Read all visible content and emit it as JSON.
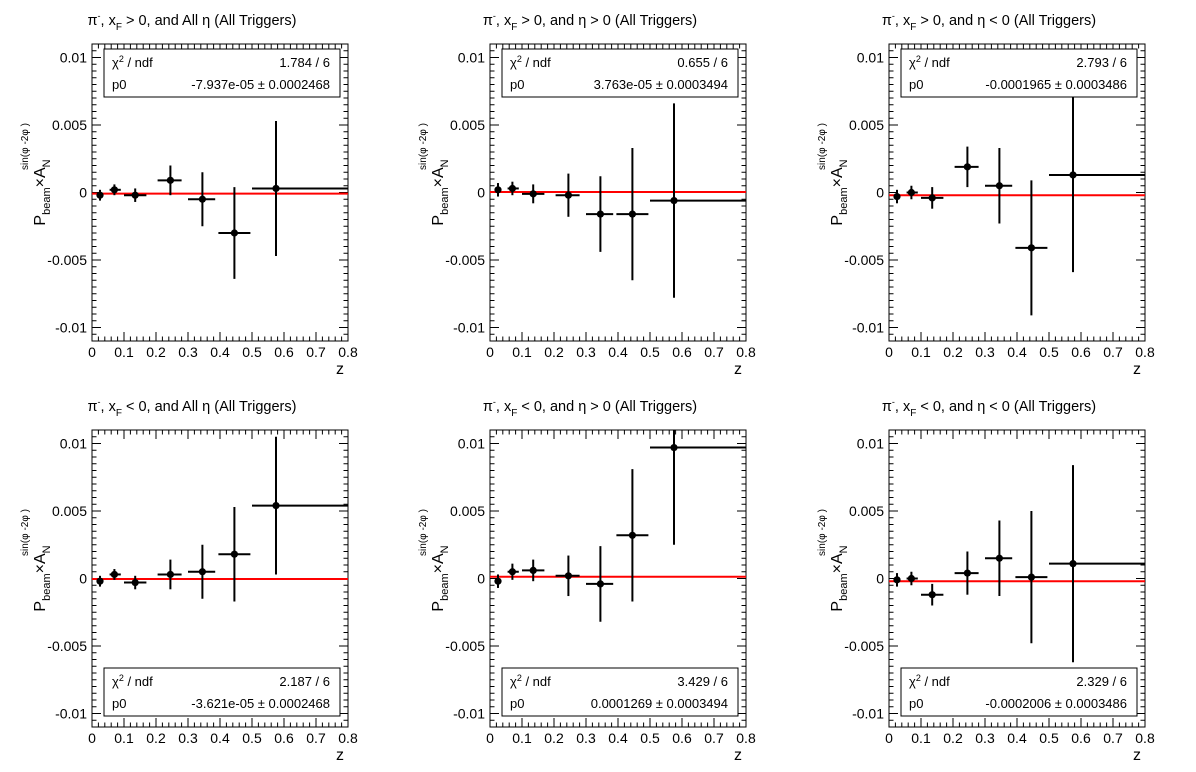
{
  "chart_data": [
    {
      "type": "scatter",
      "title_particle": "π",
      "title_charge": "-",
      "title_xf_sub": "F",
      "title_text": "> 0, and All η (All Triggers)",
      "ylabel_main": "P",
      "ylabel_sub": "beam",
      "ylabel_A": "A",
      "ylabel_Asub": "N",
      "ylabel_sup": "sin(φ  -2φ )",
      "ylabel_sup_s": "S",
      "ylabel_sup_h": "h",
      "xlabel": "z",
      "xlim": [
        0,
        0.8
      ],
      "ylim": [
        -0.011,
        0.011
      ],
      "xticks": [
        "0",
        "0.1",
        "0.2",
        "0.3",
        "0.4",
        "0.5",
        "0.6",
        "0.7",
        "0.8"
      ],
      "yticks": [
        "0.01",
        "0.005",
        "0",
        "-0.005",
        "-0.01"
      ],
      "legend_position": "top",
      "stats": {
        "chi2_label": "χ",
        "chi2_sup": "2",
        "chi2_rest": " / ndf",
        "chi2_value": "1.784 / 6",
        "p0_label": "p0",
        "p0_value": "-7.937e-05 ± 0.0002468"
      },
      "fit_value": -8e-05,
      "points": [
        {
          "x": 0.025,
          "y": -0.0002,
          "xlo": 0.015,
          "xhi": 0.035,
          "yerr": 0.0004
        },
        {
          "x": 0.07,
          "y": 0.0002,
          "xlo": 0.055,
          "xhi": 0.09,
          "yerr": 0.0004
        },
        {
          "x": 0.135,
          "y": -0.0002,
          "xlo": 0.1,
          "xhi": 0.17,
          "yerr": 0.0005
        },
        {
          "x": 0.245,
          "y": 0.0009,
          "xlo": 0.205,
          "xhi": 0.28,
          "yerr": 0.0011
        },
        {
          "x": 0.345,
          "y": -0.0005,
          "xlo": 0.3,
          "xhi": 0.385,
          "yerr": 0.002
        },
        {
          "x": 0.445,
          "y": -0.003,
          "xlo": 0.395,
          "xhi": 0.495,
          "yerr": 0.0034
        },
        {
          "x": 0.575,
          "y": 0.0003,
          "xlo": 0.5,
          "xhi": 0.8,
          "yerr": 0.005
        }
      ]
    },
    {
      "type": "scatter",
      "title_particle": "π",
      "title_charge": "-",
      "title_xf_sub": "F",
      "title_text": "> 0, and η > 0 (All Triggers)",
      "ylabel_main": "P",
      "ylabel_sub": "beam",
      "ylabel_A": "A",
      "ylabel_Asub": "N",
      "ylabel_sup": "sin(φ  -2φ )",
      "ylabel_sup_s": "S",
      "ylabel_sup_h": "h",
      "xlabel": "z",
      "xlim": [
        0,
        0.8
      ],
      "ylim": [
        -0.011,
        0.011
      ],
      "xticks": [
        "0",
        "0.1",
        "0.2",
        "0.3",
        "0.4",
        "0.5",
        "0.6",
        "0.7",
        "0.8"
      ],
      "yticks": [
        "0.01",
        "0.005",
        "0",
        "-0.005",
        "-0.01"
      ],
      "legend_position": "top",
      "stats": {
        "chi2_label": "χ",
        "chi2_sup": "2",
        "chi2_rest": " / ndf",
        "chi2_value": "0.655 / 6",
        "p0_label": "p0",
        "p0_value": "3.763e-05 ± 0.0003494"
      },
      "fit_value": 4e-05,
      "points": [
        {
          "x": 0.025,
          "y": 0.0002,
          "xlo": 0.015,
          "xhi": 0.035,
          "yerr": 0.0005
        },
        {
          "x": 0.07,
          "y": 0.0003,
          "xlo": 0.055,
          "xhi": 0.09,
          "yerr": 0.0005
        },
        {
          "x": 0.135,
          "y": -0.0001,
          "xlo": 0.1,
          "xhi": 0.17,
          "yerr": 0.0007
        },
        {
          "x": 0.245,
          "y": -0.0002,
          "xlo": 0.205,
          "xhi": 0.28,
          "yerr": 0.0016
        },
        {
          "x": 0.345,
          "y": -0.0016,
          "xlo": 0.3,
          "xhi": 0.385,
          "yerr": 0.0028
        },
        {
          "x": 0.445,
          "y": -0.0016,
          "xlo": 0.395,
          "xhi": 0.495,
          "yerr": 0.0049
        },
        {
          "x": 0.575,
          "y": -0.0006,
          "xlo": 0.5,
          "xhi": 0.8,
          "yerr": 0.0072
        }
      ]
    },
    {
      "type": "scatter",
      "title_particle": "π",
      "title_charge": "-",
      "title_xf_sub": "F",
      "title_text": "> 0, and η < 0 (All Triggers)",
      "ylabel_main": "P",
      "ylabel_sub": "beam",
      "ylabel_A": "A",
      "ylabel_Asub": "N",
      "ylabel_sup": "sin(φ  -2φ )",
      "ylabel_sup_s": "S",
      "ylabel_sup_h": "h",
      "xlabel": "z",
      "xlim": [
        0,
        0.8
      ],
      "ylim": [
        -0.011,
        0.011
      ],
      "xticks": [
        "0",
        "0.1",
        "0.2",
        "0.3",
        "0.4",
        "0.5",
        "0.6",
        "0.7",
        "0.8"
      ],
      "yticks": [
        "0.01",
        "0.005",
        "0",
        "-0.005",
        "-0.01"
      ],
      "legend_position": "top",
      "stats": {
        "chi2_label": "χ",
        "chi2_sup": "2",
        "chi2_rest": " / ndf",
        "chi2_value": "2.793 / 6",
        "p0_label": "p0",
        "p0_value": "-0.0001965 ± 0.0003486"
      },
      "fit_value": -0.0002,
      "points": [
        {
          "x": 0.025,
          "y": -0.0003,
          "xlo": 0.015,
          "xhi": 0.035,
          "yerr": 0.0005
        },
        {
          "x": 0.07,
          "y": 0.0,
          "xlo": 0.055,
          "xhi": 0.09,
          "yerr": 0.0005
        },
        {
          "x": 0.135,
          "y": -0.0004,
          "xlo": 0.1,
          "xhi": 0.17,
          "yerr": 0.0008
        },
        {
          "x": 0.245,
          "y": 0.0019,
          "xlo": 0.205,
          "xhi": 0.28,
          "yerr": 0.0015
        },
        {
          "x": 0.345,
          "y": 0.0005,
          "xlo": 0.3,
          "xhi": 0.385,
          "yerr": 0.0028
        },
        {
          "x": 0.445,
          "y": -0.0041,
          "xlo": 0.395,
          "xhi": 0.495,
          "yerr": 0.005
        },
        {
          "x": 0.575,
          "y": 0.0013,
          "xlo": 0.5,
          "xhi": 0.8,
          "yerr": 0.0072
        }
      ]
    },
    {
      "type": "scatter",
      "title_particle": "π",
      "title_charge": "-",
      "title_xf_sub": "F",
      "title_text": "< 0, and All η (All Triggers)",
      "ylabel_main": "P",
      "ylabel_sub": "beam",
      "ylabel_A": "A",
      "ylabel_Asub": "N",
      "ylabel_sup": "sin(φ  -2φ )",
      "ylabel_sup_s": "S",
      "ylabel_sup_h": "h",
      "xlabel": "z",
      "xlim": [
        0,
        0.8
      ],
      "ylim": [
        -0.011,
        0.011
      ],
      "xticks": [
        "0",
        "0.1",
        "0.2",
        "0.3",
        "0.4",
        "0.5",
        "0.6",
        "0.7",
        "0.8"
      ],
      "yticks": [
        "0.01",
        "0.005",
        "0",
        "-0.005",
        "-0.01"
      ],
      "legend_position": "bottom",
      "stats": {
        "chi2_label": "χ",
        "chi2_sup": "2",
        "chi2_rest": " / ndf",
        "chi2_value": "2.187 / 6",
        "p0_label": "p0",
        "p0_value": "-3.621e-05 ± 0.0002468"
      },
      "fit_value": -4e-05,
      "points": [
        {
          "x": 0.025,
          "y": -0.0002,
          "xlo": 0.015,
          "xhi": 0.035,
          "yerr": 0.0004
        },
        {
          "x": 0.07,
          "y": 0.0003,
          "xlo": 0.055,
          "xhi": 0.09,
          "yerr": 0.0004
        },
        {
          "x": 0.135,
          "y": -0.0003,
          "xlo": 0.1,
          "xhi": 0.17,
          "yerr": 0.0005
        },
        {
          "x": 0.245,
          "y": 0.0003,
          "xlo": 0.205,
          "xhi": 0.28,
          "yerr": 0.0011
        },
        {
          "x": 0.345,
          "y": 0.0005,
          "xlo": 0.3,
          "xhi": 0.385,
          "yerr": 0.002
        },
        {
          "x": 0.445,
          "y": 0.0018,
          "xlo": 0.395,
          "xhi": 0.495,
          "yerr": 0.0035
        },
        {
          "x": 0.575,
          "y": 0.0054,
          "xlo": 0.5,
          "xhi": 0.8,
          "yerr": 0.0051
        }
      ]
    },
    {
      "type": "scatter",
      "title_particle": "π",
      "title_charge": "-",
      "title_xf_sub": "F",
      "title_text": "< 0, and η > 0 (All Triggers)",
      "ylabel_main": "P",
      "ylabel_sub": "beam",
      "ylabel_A": "A",
      "ylabel_Asub": "N",
      "ylabel_sup": "sin(φ  -2φ )",
      "ylabel_sup_s": "S",
      "ylabel_sup_h": "h",
      "xlabel": "z",
      "xlim": [
        0,
        0.8
      ],
      "ylim": [
        -0.011,
        0.011
      ],
      "xticks": [
        "0",
        "0.1",
        "0.2",
        "0.3",
        "0.4",
        "0.5",
        "0.6",
        "0.7",
        "0.8"
      ],
      "yticks": [
        "0.01",
        "0.005",
        "0",
        "-0.005",
        "-0.01"
      ],
      "legend_position": "bottom",
      "stats": {
        "chi2_label": "χ",
        "chi2_sup": "2",
        "chi2_rest": " / ndf",
        "chi2_value": "3.429 / 6",
        "p0_label": "p0",
        "p0_value": "0.0001269 ± 0.0003494"
      },
      "fit_value": 0.00013,
      "points": [
        {
          "x": 0.025,
          "y": -0.0002,
          "xlo": 0.015,
          "xhi": 0.035,
          "yerr": 0.0005
        },
        {
          "x": 0.07,
          "y": 0.0005,
          "xlo": 0.055,
          "xhi": 0.09,
          "yerr": 0.0006
        },
        {
          "x": 0.135,
          "y": 0.0006,
          "xlo": 0.1,
          "xhi": 0.17,
          "yerr": 0.0008
        },
        {
          "x": 0.245,
          "y": 0.0002,
          "xlo": 0.205,
          "xhi": 0.28,
          "yerr": 0.0015
        },
        {
          "x": 0.345,
          "y": -0.0004,
          "xlo": 0.3,
          "xhi": 0.385,
          "yerr": 0.0028
        },
        {
          "x": 0.445,
          "y": 0.0032,
          "xlo": 0.395,
          "xhi": 0.495,
          "yerr": 0.0049
        },
        {
          "x": 0.575,
          "y": 0.0097,
          "xlo": 0.5,
          "xhi": 0.8,
          "yerr": 0.0072
        }
      ]
    },
    {
      "type": "scatter",
      "title_particle": "π",
      "title_charge": "-",
      "title_xf_sub": "F",
      "title_text": "< 0, and η < 0 (All Triggers)",
      "ylabel_main": "P",
      "ylabel_sub": "beam",
      "ylabel_A": "A",
      "ylabel_Asub": "N",
      "ylabel_sup": "sin(φ  -2φ )",
      "ylabel_sup_s": "S",
      "ylabel_sup_h": "h",
      "xlabel": "z",
      "xlim": [
        0,
        0.8
      ],
      "ylim": [
        -0.011,
        0.011
      ],
      "xticks": [
        "0",
        "0.1",
        "0.2",
        "0.3",
        "0.4",
        "0.5",
        "0.6",
        "0.7",
        "0.8"
      ],
      "yticks": [
        "0.01",
        "0.005",
        "0",
        "-0.005",
        "-0.01"
      ],
      "legend_position": "bottom",
      "stats": {
        "chi2_label": "χ",
        "chi2_sup": "2",
        "chi2_rest": " / ndf",
        "chi2_value": "2.329 / 6",
        "p0_label": "p0",
        "p0_value": "-0.0002006 ± 0.0003486"
      },
      "fit_value": -0.0002,
      "points": [
        {
          "x": 0.025,
          "y": -0.0001,
          "xlo": 0.015,
          "xhi": 0.035,
          "yerr": 0.0005
        },
        {
          "x": 0.07,
          "y": 0.0,
          "xlo": 0.055,
          "xhi": 0.09,
          "yerr": 0.0005
        },
        {
          "x": 0.135,
          "y": -0.0012,
          "xlo": 0.1,
          "xhi": 0.17,
          "yerr": 0.0008
        },
        {
          "x": 0.245,
          "y": 0.0004,
          "xlo": 0.205,
          "xhi": 0.28,
          "yerr": 0.0016
        },
        {
          "x": 0.345,
          "y": 0.0015,
          "xlo": 0.3,
          "xhi": 0.385,
          "yerr": 0.0028
        },
        {
          "x": 0.445,
          "y": 0.0001,
          "xlo": 0.395,
          "xhi": 0.495,
          "yerr": 0.0049
        },
        {
          "x": 0.575,
          "y": 0.0011,
          "xlo": 0.5,
          "xhi": 0.8,
          "yerr": 0.0073
        }
      ]
    }
  ],
  "colors": {
    "fit_line": "#ff0000",
    "points": "#000000",
    "axes": "#000000",
    "background": "#ffffff"
  }
}
